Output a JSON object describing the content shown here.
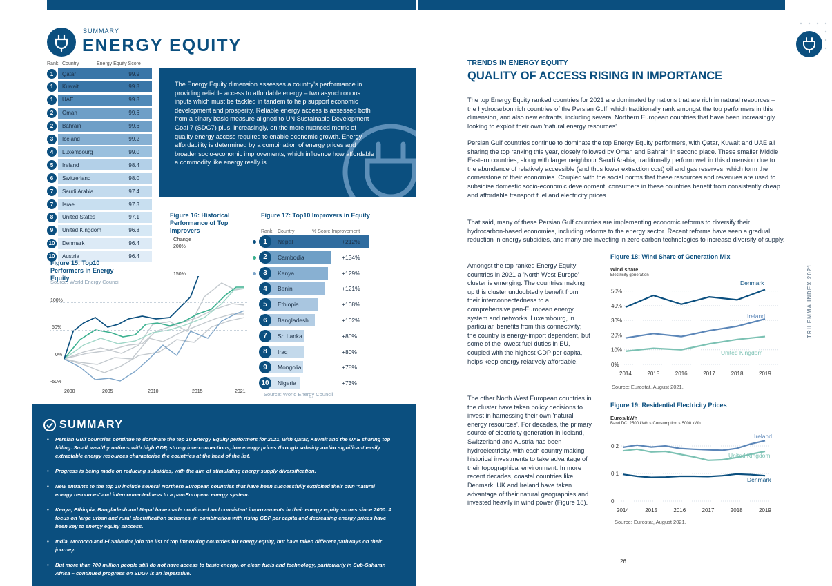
{
  "header": {
    "kicker": "SUMMARY",
    "title": "ENERGY EQUITY"
  },
  "ranking": {
    "col_rank": "Rank",
    "col_country": "Country",
    "col_score": "Energy Equity Score",
    "rows": [
      {
        "rank": "1",
        "country": "Qatar",
        "score": "99.9"
      },
      {
        "rank": "1",
        "country": "Kuwait",
        "score": "99.8"
      },
      {
        "rank": "1",
        "country": "UAE",
        "score": "99.8"
      },
      {
        "rank": "2",
        "country": "Oman",
        "score": "99.6"
      },
      {
        "rank": "2",
        "country": "Bahrain",
        "score": "99.6"
      },
      {
        "rank": "3",
        "country": "Iceland",
        "score": "99.2"
      },
      {
        "rank": "4",
        "country": "Luxembourg",
        "score": "99.0"
      },
      {
        "rank": "5",
        "country": "Ireland",
        "score": "98.4"
      },
      {
        "rank": "6",
        "country": "Switzerland",
        "score": "98.0"
      },
      {
        "rank": "7",
        "country": "Saudi Arabia",
        "score": "97.4"
      },
      {
        "rank": "7",
        "country": "Israel",
        "score": "97.3"
      },
      {
        "rank": "8",
        "country": "United States",
        "score": "97.1"
      },
      {
        "rank": "9",
        "country": "United Kingdom",
        "score": "96.8"
      },
      {
        "rank": "10",
        "country": "Denmark",
        "score": "96.4"
      },
      {
        "rank": "10",
        "country": "Austria",
        "score": "96.4"
      }
    ],
    "fig_label": "Figure 15:  Top10 Performers in Energy Equity",
    "source": "Source: World Energy Council"
  },
  "intro_box": {
    "text": "The Energy Equity dimension assesses a country's performance in providing reliable access to affordable energy – two asynchronous inputs which must be tackled in tandem to help support economic development and prosperity. Reliable energy access is assessed both from a binary basic measure aligned to UN Sustainable Development Goal 7 (SDG7) plus, increasingly, on the more nuanced metric of quality energy access required to enable economic growth. Energy affordability is determined by a combination of energy prices and broader socio-economic improvements, which influence how affordable a commodity like energy really is."
  },
  "fig16": {
    "title": "Figure 16:  Historical Performance of Top Improvers",
    "change_label": "Change",
    "y_ticks": [
      "200%",
      "150%",
      "100%",
      "50%",
      "0%",
      "-50%"
    ],
    "x_ticks": [
      "2000",
      "2005",
      "2010",
      "2015",
      "2021"
    ]
  },
  "fig17": {
    "title": "Figure 17:  Top10 Improvers in Equity",
    "col_rank": "Rank",
    "col_country": "Country",
    "col_pct": "% Score Improvement",
    "rows": [
      {
        "rank": "1",
        "country": "Nepal",
        "pct": "+212%",
        "value": 212
      },
      {
        "rank": "2",
        "country": "Cambodia",
        "pct": "+134%",
        "value": 134
      },
      {
        "rank": "3",
        "country": "Kenya",
        "pct": "+129%",
        "value": 129
      },
      {
        "rank": "4",
        "country": "Benin",
        "pct": "+121%",
        "value": 121
      },
      {
        "rank": "5",
        "country": "Ethiopia",
        "pct": "+108%",
        "value": 108
      },
      {
        "rank": "6",
        "country": "Bangladesh",
        "pct": "+102%",
        "value": 102
      },
      {
        "rank": "7",
        "country": "Sri Lanka",
        "pct": "+80%",
        "value": 80
      },
      {
        "rank": "8",
        "country": "Iraq",
        "pct": "+80%",
        "value": 80
      },
      {
        "rank": "9",
        "country": "Mongolia",
        "pct": "+78%",
        "value": 78
      },
      {
        "rank": "10",
        "country": "Nigeria",
        "pct": "+73%",
        "value": 73
      }
    ],
    "source": "Source: World Energy Council"
  },
  "summary": {
    "title": "SUMMARY",
    "items": [
      "Persian Gulf countries continue to dominate the top 10 Energy Equity performers for 2021, with Qatar, Kuwait and the UAE sharing top billing. Small, wealthy nations with high GDP, strong interconnections, low energy prices through subsidy and/or significant easily extractable energy resources characterise the countries at the head of the list.",
      "Progress is being made on reducing subsidies, with the aim of stimulating energy supply diversification.",
      "New entrants to the top 10 include several Northern European countries that have been successfully exploited their own 'natural energy resources' and interconnectedness to a pan-European energy system.",
      "Kenya, Ethiopia, Bangladesh and Nepal have made continued and consistent improvements in their energy equity scores since 2000.  A focus on large urban and rural electrification schemes, in combination with rising GDP per capita and decreasing energy prices have been key to energy equity success.",
      "India, Morocco and El Salvador join the list of top improving countries for energy equity, but have taken different pathways on their journey.",
      "But more than 700 million people still do not have access to basic energy, or clean fuels and technology, particularly in Sub-Saharan Africa – continued progress on SDG7 is an imperative."
    ]
  },
  "right": {
    "kicker": "TRENDS IN ENERGY EQUITY",
    "title": "QUALITY OF ACCESS RISING IN IMPORTANCE",
    "para1": "The top Energy Equity ranked countries for 2021 are dominated by nations that are rich in natural resources – the hydrocarbon rich countries of the Persian Gulf, which traditionally rank amongst the top performers in this dimension, and also new entrants, including several Northern European countries that have been increasingly looking to exploit their own 'natural energy resources'.",
    "para2": "Persian Gulf countries continue to dominate the top Energy Equity performers, with Qatar, Kuwait and UAE all sharing the top ranking this year, closely followed by Oman and Bahrain in second place. These smaller Middle Eastern countries, along with larger neighbour Saudi Arabia, traditionally perform well in this dimension due to the abundance of relatively accessible (and thus lower extraction cost) oil and gas reserves, which form the cornerstone of their economies. Coupled with the social norms that these resources and revenues are used to subsidise domestic socio-economic development, consumers in these countries benefit from consistently cheap and affordable transport fuel and electricity prices.",
    "para3": "That said, many of these Persian Gulf countries are implementing economic reforms to diversify their hydrocarbon-based economies, including reforms to the energy sector. Recent reforms have seen a gradual reduction in energy subsidies, and many are investing in zero-carbon technologies to increase diversity of supply.",
    "para4": "Amongst the top ranked Energy Equity countries in 2021 a 'North West Europe' cluster is emerging. The countries making up this cluster undoubtedly benefit from their interconnectedness to a comprehensive pan-European energy system and networks. Luxembourg, in particular, benefits from this connectivity; the country is energy-import dependent, but some of the lowest fuel duties in EU, coupled with the highest GDP per capita, helps keep energy relatively affordable.",
    "para5": "The other North West European countries in the cluster have taken policy decisions to invest in harnessing their own 'natural energy resources'. For decades, the primary source of electricity generation in Iceland, Switzerland and Austria has been hydroelectricity, with each country making historical investments to take advantage of their topographical environment. In more recent decades, coastal countries like Denmark, UK and Ireland have taken advantage of their natural geographies and invested heavily in wind power (Figure 18).",
    "side_label": "TRILEMMA INDEX 2021",
    "page_number": "26"
  },
  "fig18": {
    "title": "Figure 18:  Wind Share of Generation Mix",
    "unit": "Wind share",
    "subunit": "Electricity generation",
    "source": "Source: Eurostat, August 2021."
  },
  "fig19": {
    "title": "Figure 19:  Residential Electricity Prices",
    "unit": "Euros/kWh",
    "subunit": "Band DC: 2500 kWh < Consumption < 5000 kWh",
    "source": "Source: Eurostat, August 2021."
  },
  "chart_data": [
    {
      "type": "line",
      "title": "Figure 18:  Wind Share of Generation Mix",
      "ylabel": "Wind share",
      "x": [
        2014,
        2015,
        2016,
        2017,
        2018,
        2019
      ],
      "y_ticks": [
        "50%",
        "40%",
        "30%",
        "20%",
        "10%",
        "0%"
      ],
      "x_ticks": [
        "2014",
        "2015",
        "2016",
        "2017",
        "2018",
        "2019"
      ],
      "ylim": [
        0,
        55
      ],
      "colors": {
        "Denmark": "#0b4f7f",
        "Ireland": "#5b86b8",
        "United Kingdom": "#7bc1b3"
      },
      "series": [
        {
          "name": "Denmark",
          "values": [
            39,
            47,
            41,
            46,
            44,
            51
          ]
        },
        {
          "name": "Ireland",
          "values": [
            18,
            21,
            19,
            23,
            26,
            31
          ]
        },
        {
          "name": "United Kingdom",
          "values": [
            9,
            11,
            10,
            14,
            17,
            19
          ]
        }
      ]
    },
    {
      "type": "line",
      "title": "Figure 19:  Residential Electricity Prices",
      "ylabel": "Euros/kWh",
      "x_ticks": [
        "2014",
        "2015",
        "2016",
        "2017",
        "2018",
        "2019"
      ],
      "y_ticks": [
        "0.2",
        "0.1",
        "0"
      ],
      "ylim": [
        0,
        0.26
      ],
      "colors": {
        "Ireland": "#5b86b8",
        "United Kingdom": "#7bc1b3",
        "Denmark": "#0b4f7f"
      },
      "series": [
        {
          "name": "Ireland",
          "x": [
            2014,
            2014.5,
            2015,
            2015.5,
            2016,
            2016.5,
            2017,
            2017.5,
            2018,
            2018.5,
            2019
          ],
          "values": [
            0.195,
            0.203,
            0.196,
            0.2,
            0.191,
            0.188,
            0.186,
            0.184,
            0.191,
            0.207,
            0.219
          ]
        },
        {
          "name": "United Kingdom",
          "x": [
            2014,
            2014.5,
            2015,
            2015.5,
            2016,
            2016.5,
            2017,
            2017.5,
            2018,
            2018.5,
            2019
          ],
          "values": [
            0.182,
            0.188,
            0.178,
            0.18,
            0.17,
            0.16,
            0.148,
            0.15,
            0.158,
            0.17,
            0.18
          ]
        },
        {
          "name": "Denmark",
          "x": [
            2014,
            2014.5,
            2015,
            2015.5,
            2016,
            2016.5,
            2017,
            2017.5,
            2018,
            2018.5,
            2019
          ],
          "values": [
            0.097,
            0.09,
            0.086,
            0.087,
            0.09,
            0.09,
            0.089,
            0.092,
            0.098,
            0.096,
            0.092
          ]
        }
      ]
    }
  ]
}
